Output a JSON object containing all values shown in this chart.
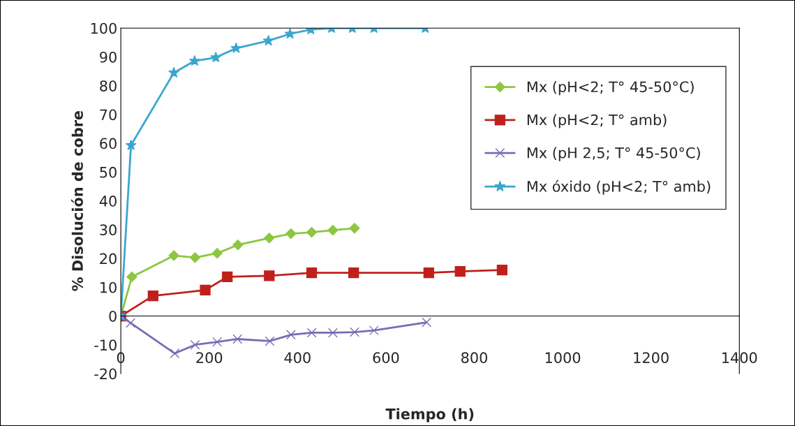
{
  "chart_data": {
    "type": "line",
    "xlabel": "Tiempo (h)",
    "ylabel": "% Disolución de cobre",
    "xlim": [
      0,
      1400
    ],
    "xticks": [
      0,
      200,
      400,
      600,
      800,
      1000,
      1200,
      1400
    ],
    "ylim": [
      -20,
      100
    ],
    "yticks": [
      -20,
      -10,
      0,
      10,
      20,
      30,
      40,
      50,
      60,
      70,
      80,
      90,
      100
    ],
    "grid": false,
    "legend": "top right",
    "series": [
      {
        "name": "Mx (pH<2; T° 45-50°C)",
        "color": "#8dc63f",
        "marker": "diamond",
        "x": [
          0,
          25,
          120,
          168,
          218,
          265,
          336,
          385,
          432,
          480,
          529
        ],
        "values": [
          0,
          13.6,
          21,
          20.3,
          21.8,
          24.7,
          27.1,
          28.6,
          29.1,
          29.8,
          30.5
        ]
      },
      {
        "name": "Mx (pH<2; T° amb)",
        "color": "#c0201c",
        "marker": "square",
        "x": [
          0,
          73,
          191,
          241,
          336,
          432,
          527,
          697,
          768,
          863
        ],
        "values": [
          0,
          7.0,
          9.0,
          13.6,
          14.0,
          15.0,
          15.0,
          15.0,
          15.5,
          16.0
        ]
      },
      {
        "name": "Mx (pH 2,5; T° 45-50°C)",
        "color": "#7b6bb5",
        "marker": "cross",
        "x": [
          0,
          22,
          122,
          168,
          218,
          264,
          337,
          385,
          432,
          480,
          529,
          573,
          692
        ],
        "values": [
          0,
          -2.4,
          -13,
          -10,
          -9,
          -8,
          -8.7,
          -6.5,
          -5.8,
          -5.8,
          -5.6,
          -5,
          -2.2
        ]
      },
      {
        "name": "Mx óxido (pH<2; T° amb)",
        "color": "#3aa6cf",
        "marker": "star",
        "x": [
          0,
          23,
          120,
          167,
          215,
          261,
          334,
          383,
          430,
          477,
          524,
          573,
          689
        ],
        "values": [
          0,
          59.3,
          84.5,
          88.6,
          89.8,
          93,
          95.6,
          98,
          99.5,
          100,
          100,
          100,
          100
        ]
      }
    ]
  }
}
